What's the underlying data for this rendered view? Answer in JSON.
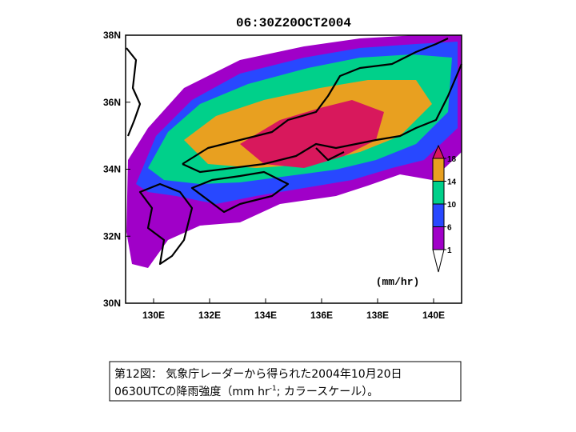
{
  "title": "06:30Z20OCT2004",
  "map": {
    "lon_range": [
      129,
      141
    ],
    "lat_range": [
      30,
      38
    ],
    "lon_ticks": [
      {
        "value": 130,
        "label": "130E"
      },
      {
        "value": 132,
        "label": "132E"
      },
      {
        "value": 134,
        "label": "134E"
      },
      {
        "value": 136,
        "label": "136E"
      },
      {
        "value": 138,
        "label": "138E"
      },
      {
        "value": 140,
        "label": "140E"
      }
    ],
    "lat_ticks": [
      {
        "value": 30,
        "label": "30N"
      },
      {
        "value": 32,
        "label": "32N"
      },
      {
        "value": 34,
        "label": "34N"
      },
      {
        "value": 36,
        "label": "36N"
      },
      {
        "value": 38,
        "label": "38N"
      }
    ]
  },
  "colorbar": {
    "levels": [
      1,
      6,
      10,
      14,
      18
    ],
    "colors": [
      "#ffffff",
      "#a000c8",
      "#2848ff",
      "#00d08a",
      "#e8a020",
      "#d8185c"
    ],
    "units": "(mm/hr)"
  },
  "caption": {
    "line1": "第12図： 気象庁レーダーから得られた2004年10月20日",
    "line2_before": "0630UTCの降雨強度（mm hr",
    "line2_superscript": "-1",
    "line2_after": "; カラースケール）。"
  }
}
